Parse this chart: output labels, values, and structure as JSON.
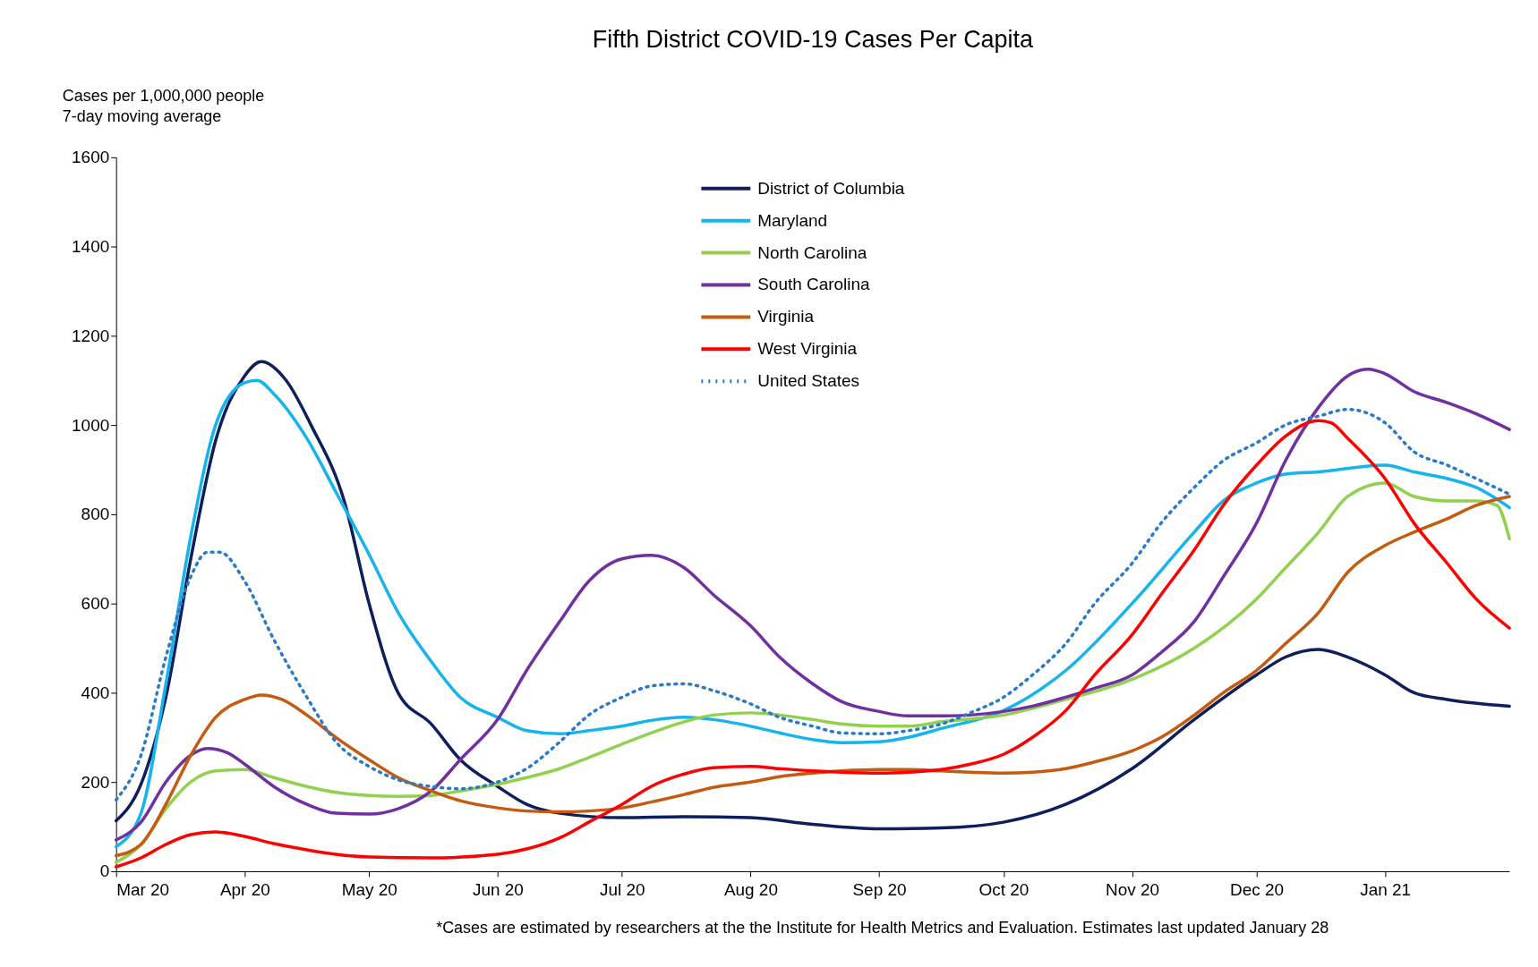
{
  "chart_data": {
    "type": "line",
    "title": "Fifth District COVID-19 Cases Per Capita",
    "ylabel": "Cases per 1,000,000 people\n7-day moving average",
    "annotations": [
      "*Cases are estimated by researchers at the the Institute for Health Metrics and Evaluation.  Estimates last updated January 28"
    ],
    "xlim": [
      "2020-03-01",
      "2021-01-31"
    ],
    "ylim": [
      0,
      1600
    ],
    "yticks": [
      0,
      200,
      400,
      600,
      800,
      1000,
      1200,
      1400,
      1600
    ],
    "xticks": [
      {
        "value": "2020-03-01",
        "label": "Mar 20"
      },
      {
        "value": "2020-04-01",
        "label": "Apr 20"
      },
      {
        "value": "2020-05-01",
        "label": "May 20"
      },
      {
        "value": "2020-06-01",
        "label": "Jun 20"
      },
      {
        "value": "2020-07-01",
        "label": "Jul 20"
      },
      {
        "value": "2020-08-01",
        "label": "Aug 20"
      },
      {
        "value": "2020-09-01",
        "label": "Sep 20"
      },
      {
        "value": "2020-10-01",
        "label": "Oct 20"
      },
      {
        "value": "2020-11-01",
        "label": "Nov 20"
      },
      {
        "value": "2020-12-01",
        "label": "Dec 20"
      },
      {
        "value": "2021-01-01",
        "label": "Jan 21"
      }
    ],
    "grid": false,
    "legend": "top",
    "marker": "none",
    "series": [
      {
        "name": "District of Columbia",
        "color": "#0d1f5c",
        "line_style": "solid",
        "x": [
          "2020-03-01",
          "2020-03-07",
          "2020-03-13",
          "2020-03-19",
          "2020-03-25",
          "2020-04-01",
          "2020-04-05",
          "2020-04-11",
          "2020-04-17",
          "2020-04-25",
          "2020-05-01",
          "2020-05-08",
          "2020-05-16",
          "2020-05-23",
          "2020-06-01",
          "2020-06-08",
          "2020-06-16",
          "2020-07-01",
          "2020-07-16",
          "2020-08-01",
          "2020-08-16",
          "2020-09-01",
          "2020-09-16",
          "2020-10-01",
          "2020-10-16",
          "2020-11-01",
          "2020-11-16",
          "2020-12-01",
          "2020-12-08",
          "2020-12-16",
          "2020-12-23",
          "2021-01-01",
          "2021-01-08",
          "2021-01-16",
          "2021-01-31"
        ],
        "values": [
          113,
          195,
          390,
          700,
          965,
          1110,
          1142,
          1100,
          1000,
          830,
          600,
          400,
          330,
          250,
          190,
          150,
          130,
          120,
          122,
          120,
          105,
          95,
          97,
          110,
          150,
          230,
          340,
          440,
          480,
          497,
          480,
          440,
          400,
          385,
          370
        ]
      },
      {
        "name": "Maryland",
        "color": "#16b4ec",
        "line_style": "solid",
        "x": [
          "2020-03-01",
          "2020-03-07",
          "2020-03-13",
          "2020-03-19",
          "2020-03-25",
          "2020-04-01",
          "2020-04-04",
          "2020-04-08",
          "2020-04-16",
          "2020-04-23",
          "2020-05-01",
          "2020-05-08",
          "2020-05-16",
          "2020-05-23",
          "2020-06-01",
          "2020-06-08",
          "2020-06-16",
          "2020-06-23",
          "2020-07-01",
          "2020-07-08",
          "2020-07-16",
          "2020-07-23",
          "2020-08-01",
          "2020-08-08",
          "2020-08-16",
          "2020-08-23",
          "2020-09-01",
          "2020-09-08",
          "2020-09-16",
          "2020-10-01",
          "2020-10-16",
          "2020-11-01",
          "2020-11-16",
          "2020-11-23",
          "2020-12-01",
          "2020-12-08",
          "2020-12-16",
          "2021-01-01",
          "2021-01-08",
          "2021-01-16",
          "2021-01-23",
          "2021-01-31"
        ],
        "values": [
          55,
          130,
          420,
          750,
          1000,
          1095,
          1100,
          1070,
          970,
          850,
          710,
          580,
          470,
          390,
          345,
          315,
          308,
          315,
          325,
          338,
          345,
          340,
          325,
          310,
          295,
          288,
          290,
          300,
          320,
          360,
          450,
          600,
          760,
          830,
          870,
          890,
          895,
          910,
          895,
          880,
          860,
          815
        ]
      },
      {
        "name": "North Carolina",
        "color": "#92d050",
        "line_style": "solid",
        "x": [
          "2020-03-01",
          "2020-03-07",
          "2020-03-13",
          "2020-03-19",
          "2020-03-25",
          "2020-04-01",
          "2020-04-08",
          "2020-04-16",
          "2020-04-23",
          "2020-05-01",
          "2020-05-08",
          "2020-05-16",
          "2020-05-23",
          "2020-06-01",
          "2020-06-08",
          "2020-06-16",
          "2020-06-23",
          "2020-07-01",
          "2020-07-08",
          "2020-07-16",
          "2020-07-23",
          "2020-08-01",
          "2020-08-08",
          "2020-08-16",
          "2020-08-23",
          "2020-09-01",
          "2020-09-08",
          "2020-09-16",
          "2020-10-01",
          "2020-10-16",
          "2020-11-01",
          "2020-11-16",
          "2020-12-01",
          "2020-12-08",
          "2020-12-16",
          "2020-12-23",
          "2021-01-01",
          "2021-01-08",
          "2021-01-16",
          "2021-01-23",
          "2021-01-28",
          "2021-01-31"
        ],
        "values": [
          20,
          60,
          140,
          200,
          225,
          228,
          210,
          190,
          177,
          170,
          168,
          170,
          180,
          195,
          210,
          230,
          255,
          285,
          310,
          335,
          350,
          355,
          350,
          340,
          330,
          325,
          325,
          335,
          350,
          385,
          430,
          500,
          610,
          680,
          760,
          840,
          870,
          840,
          830,
          830,
          820,
          745
        ]
      },
      {
        "name": "South Carolina",
        "color": "#7030a0",
        "line_style": "solid",
        "x": [
          "2020-03-01",
          "2020-03-07",
          "2020-03-13",
          "2020-03-19",
          "2020-03-23",
          "2020-03-28",
          "2020-04-01",
          "2020-04-08",
          "2020-04-16",
          "2020-04-23",
          "2020-05-01",
          "2020-05-08",
          "2020-05-16",
          "2020-05-23",
          "2020-06-01",
          "2020-06-08",
          "2020-06-16",
          "2020-06-23",
          "2020-07-01",
          "2020-07-08",
          "2020-07-16",
          "2020-07-23",
          "2020-08-01",
          "2020-08-08",
          "2020-08-16",
          "2020-08-23",
          "2020-09-01",
          "2020-09-08",
          "2020-09-16",
          "2020-09-23",
          "2020-10-01",
          "2020-10-08",
          "2020-10-16",
          "2020-10-23",
          "2020-11-01",
          "2020-11-08",
          "2020-11-16",
          "2020-11-23",
          "2020-12-01",
          "2020-12-08",
          "2020-12-16",
          "2020-12-23",
          "2020-12-28",
          "2021-01-01",
          "2021-01-08",
          "2021-01-16",
          "2021-01-23",
          "2021-01-31"
        ],
        "values": [
          70,
          110,
          200,
          260,
          275,
          265,
          240,
          190,
          150,
          130,
          128,
          140,
          180,
          250,
          340,
          450,
          560,
          650,
          700,
          708,
          680,
          620,
          550,
          480,
          420,
          380,
          358,
          348,
          348,
          350,
          358,
          370,
          390,
          410,
          440,
          490,
          560,
          660,
          780,
          920,
          1040,
          1110,
          1125,
          1115,
          1075,
          1050,
          1025,
          990
        ]
      },
      {
        "name": "Virginia",
        "color": "#c55a11",
        "line_style": "solid",
        "x": [
          "2020-03-01",
          "2020-03-07",
          "2020-03-13",
          "2020-03-19",
          "2020-03-25",
          "2020-04-01",
          "2020-04-05",
          "2020-04-10",
          "2020-04-16",
          "2020-04-23",
          "2020-05-01",
          "2020-05-08",
          "2020-05-16",
          "2020-05-23",
          "2020-06-01",
          "2020-06-08",
          "2020-06-16",
          "2020-06-23",
          "2020-07-01",
          "2020-07-08",
          "2020-07-16",
          "2020-07-23",
          "2020-08-01",
          "2020-08-08",
          "2020-08-16",
          "2020-08-23",
          "2020-09-01",
          "2020-09-08",
          "2020-09-16",
          "2020-09-23",
          "2020-10-01",
          "2020-10-08",
          "2020-10-16",
          "2020-10-23",
          "2020-11-01",
          "2020-11-08",
          "2020-11-16",
          "2020-11-23",
          "2020-12-01",
          "2020-12-08",
          "2020-12-16",
          "2020-12-23",
          "2021-01-01",
          "2021-01-08",
          "2021-01-16",
          "2021-01-23",
          "2021-01-31"
        ],
        "values": [
          35,
          60,
          150,
          260,
          345,
          385,
          395,
          385,
          350,
          300,
          250,
          210,
          180,
          158,
          142,
          135,
          133,
          135,
          142,
          155,
          172,
          188,
          200,
          212,
          220,
          225,
          228,
          228,
          225,
          222,
          220,
          222,
          230,
          245,
          270,
          300,
          350,
          400,
          450,
          510,
          580,
          670,
          730,
          760,
          790,
          820,
          840
        ]
      },
      {
        "name": "West Virginia",
        "color": "#ff0000",
        "line_style": "solid",
        "x": [
          "2020-03-01",
          "2020-03-07",
          "2020-03-13",
          "2020-03-19",
          "2020-03-25",
          "2020-04-01",
          "2020-04-08",
          "2020-04-16",
          "2020-04-23",
          "2020-05-01",
          "2020-05-16",
          "2020-06-01",
          "2020-06-08",
          "2020-06-16",
          "2020-06-23",
          "2020-07-01",
          "2020-07-08",
          "2020-07-16",
          "2020-07-23",
          "2020-08-01",
          "2020-08-08",
          "2020-08-16",
          "2020-08-23",
          "2020-09-01",
          "2020-09-08",
          "2020-09-16",
          "2020-09-23",
          "2020-10-01",
          "2020-10-08",
          "2020-10-16",
          "2020-10-23",
          "2020-11-01",
          "2020-11-08",
          "2020-11-16",
          "2020-11-23",
          "2020-12-01",
          "2020-12-08",
          "2020-12-16",
          "2020-12-19",
          "2020-12-23",
          "2021-01-01",
          "2021-01-08",
          "2021-01-16",
          "2021-01-23",
          "2021-01-31"
        ],
        "values": [
          10,
          30,
          60,
          82,
          88,
          78,
          62,
          48,
          38,
          32,
          30,
          38,
          50,
          75,
          110,
          150,
          190,
          218,
          232,
          235,
          230,
          225,
          222,
          220,
          222,
          228,
          240,
          262,
          300,
          360,
          440,
          530,
          620,
          720,
          820,
          910,
          975,
          1010,
          1005,
          970,
          880,
          780,
          690,
          610,
          545
        ]
      },
      {
        "name": "United States",
        "color": "#2a7ac8",
        "line_style": "dotted",
        "x": [
          "2020-03-01",
          "2020-03-07",
          "2020-03-13",
          "2020-03-19",
          "2020-03-23",
          "2020-03-26",
          "2020-04-01",
          "2020-04-08",
          "2020-04-16",
          "2020-04-23",
          "2020-05-01",
          "2020-05-08",
          "2020-05-16",
          "2020-05-23",
          "2020-06-01",
          "2020-06-08",
          "2020-06-16",
          "2020-06-23",
          "2020-07-01",
          "2020-07-08",
          "2020-07-16",
          "2020-07-23",
          "2020-08-01",
          "2020-08-08",
          "2020-08-16",
          "2020-08-23",
          "2020-09-01",
          "2020-09-08",
          "2020-09-16",
          "2020-09-23",
          "2020-10-01",
          "2020-10-08",
          "2020-10-16",
          "2020-10-23",
          "2020-11-01",
          "2020-11-08",
          "2020-11-16",
          "2020-11-23",
          "2020-12-01",
          "2020-12-08",
          "2020-12-16",
          "2020-12-23",
          "2021-01-01",
          "2021-01-08",
          "2021-01-16",
          "2021-01-23",
          "2021-01-31"
        ],
        "values": [
          160,
          260,
          480,
          660,
          715,
          715,
          650,
          520,
          390,
          290,
          235,
          205,
          190,
          185,
          200,
          230,
          290,
          350,
          390,
          415,
          420,
          405,
          375,
          345,
          325,
          310,
          308,
          315,
          330,
          355,
          390,
          440,
          510,
          600,
          690,
          780,
          860,
          920,
          960,
          1000,
          1020,
          1035,
          1005,
          940,
          910,
          880,
          845
        ]
      }
    ]
  }
}
